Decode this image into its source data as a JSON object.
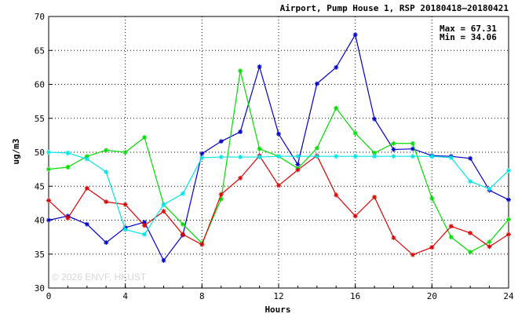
{
  "chart_data": {
    "type": "line",
    "title": "Airport, Pump House 1, RSP 20180418–20180421",
    "xlabel": "Hours",
    "ylabel": "ug/m3",
    "xlim": [
      0,
      24
    ],
    "ylim": [
      30,
      70
    ],
    "xticks": [
      0,
      4,
      8,
      12,
      16,
      20,
      24
    ],
    "yticks": [
      30,
      35,
      40,
      45,
      50,
      55,
      60,
      65,
      70
    ],
    "grid": true,
    "annotations": [
      "Max = 67.31",
      "Min = 34.06"
    ],
    "watermark": "© 2026  ENVF, HKUST",
    "x": [
      0,
      1,
      2,
      3,
      4,
      5,
      6,
      7,
      8,
      9,
      10,
      11,
      12,
      13,
      14,
      15,
      16,
      17,
      18,
      19,
      20,
      21,
      22,
      23,
      24
    ],
    "series": [
      {
        "color": "#0000cc",
        "values": [
          40.0,
          40.6,
          39.4,
          36.7,
          38.9,
          39.7,
          34.06,
          37.8,
          49.8,
          51.6,
          53.0,
          62.6,
          52.7,
          48.2,
          60.1,
          62.5,
          67.31,
          54.9,
          50.4,
          50.5,
          49.5,
          49.4,
          49.1,
          44.4,
          43.0
        ]
      },
      {
        "color": "#00dd00",
        "values": [
          47.5,
          47.8,
          49.4,
          50.3,
          50.0,
          52.2,
          42.3,
          39.4,
          36.6,
          43.1,
          62.0,
          50.5,
          49.4,
          47.6,
          50.6,
          56.5,
          52.8,
          49.9,
          51.3,
          51.3,
          43.2,
          37.5,
          35.3,
          36.8,
          40.1
        ]
      },
      {
        "color": "#dd0000",
        "values": [
          42.9,
          40.3,
          44.7,
          42.7,
          42.3,
          39.2,
          41.3,
          37.9,
          36.4,
          43.8,
          46.2,
          49.5,
          45.1,
          47.4,
          49.5,
          43.7,
          40.6,
          43.4,
          37.4,
          34.9,
          36.0,
          39.1,
          38.1,
          36.1,
          37.9
        ]
      },
      {
        "color": "#00e5e5",
        "values": [
          50.0,
          49.9,
          49.0,
          47.1,
          38.6,
          37.9,
          42.3,
          43.9,
          49.2,
          49.3,
          49.3,
          49.3,
          49.4,
          49.4,
          49.4,
          49.4,
          49.4,
          49.4,
          49.4,
          49.4,
          49.4,
          49.2,
          45.7,
          44.6,
          47.3
        ]
      }
    ]
  }
}
